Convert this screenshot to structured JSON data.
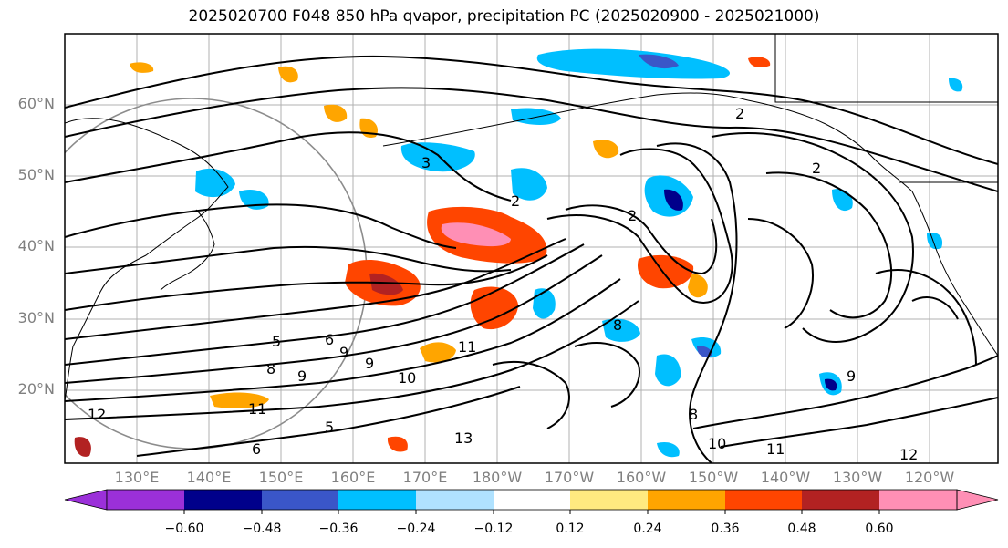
{
  "title": "2025020700 F048 850 hPa qvapor, precipitation PC (2025020900 - 2025021000)",
  "lat_labels": [
    "60°N",
    "50°N",
    "40°N",
    "30°N",
    "20°N"
  ],
  "lon_labels": [
    "130°E",
    "140°E",
    "150°E",
    "160°E",
    "170°E",
    "180°W",
    "170°W",
    "160°W",
    "150°W",
    "140°W",
    "130°W",
    "120°W"
  ],
  "colorbar": {
    "colors": [
      "#9b30d9",
      "#00008b",
      "#3a56c8",
      "#00bfff",
      "#b0e2ff",
      "#ffffff",
      "#ffea80",
      "#ffa500",
      "#ff4500",
      "#b22222",
      "#ff8fb5"
    ],
    "ticks": [
      "−0.60",
      "−0.48",
      "−0.36",
      "−0.24",
      "−0.12",
      "0.12",
      "0.24",
      "0.36",
      "0.48",
      "0.60"
    ]
  },
  "contour_labels": [
    "2",
    "3",
    "2",
    "2",
    "2",
    "5",
    "6",
    "8",
    "9",
    "9",
    "9",
    "10",
    "11",
    "12",
    "11",
    "13",
    "5",
    "6",
    "8",
    "8",
    "9",
    "10",
    "11",
    "12"
  ]
}
